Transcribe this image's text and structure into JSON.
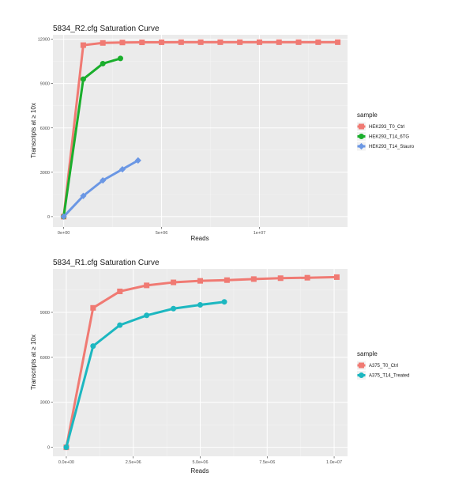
{
  "colors": {
    "panel": "#ebebeb",
    "grid_major": "#ffffff",
    "grid_minor": "#f5f5f5",
    "red": "#f07a73",
    "green": "#1aae2c",
    "blue": "#6b97e4",
    "teal": "#1cb7c0"
  },
  "chart_data": [
    {
      "type": "line",
      "title": "5834_R2.cfg Saturation Curve",
      "xlabel": "Reads",
      "ylabel": "Transcripts at ≥ 10x",
      "xlim": [
        -550000,
        14500000
      ],
      "ylim": [
        -700,
        12300
      ],
      "x_ticks": [
        0,
        5000000,
        10000000
      ],
      "x_tick_labels": [
        "0e+00",
        "5e+06",
        "1e+07"
      ],
      "y_ticks": [
        0,
        3000,
        6000,
        9000,
        12000
      ],
      "y_tick_labels": [
        "0",
        "3000",
        "6000",
        "9000",
        "12000"
      ],
      "grid": true,
      "legend_position": "right",
      "legend_title": "sample",
      "series": [
        {
          "name": "HEK293_T0_Ctrl",
          "color": "#f07a73",
          "marker": "square",
          "x": [
            0,
            1000000,
            2000000,
            3000000,
            4000000,
            5000000,
            6000000,
            7000000,
            8000000,
            9000000,
            10000000,
            11000000,
            12000000,
            13000000,
            14000000
          ],
          "y": [
            0,
            11600,
            11750,
            11780,
            11790,
            11795,
            11800,
            11800,
            11800,
            11800,
            11800,
            11800,
            11800,
            11800,
            11800
          ]
        },
        {
          "name": "HEK293_T14_6TG",
          "color": "#1aae2c",
          "marker": "circle",
          "x": [
            0,
            1000000,
            2000000,
            2900000
          ],
          "y": [
            0,
            9300,
            10350,
            10700
          ]
        },
        {
          "name": "HEK293_T14_Stauro",
          "color": "#6b97e4",
          "marker": "diamond",
          "x": [
            0,
            1000000,
            2000000,
            3000000,
            3800000
          ],
          "y": [
            0,
            1400,
            2450,
            3200,
            3800
          ]
        }
      ]
    },
    {
      "type": "line",
      "title": "5834_R1.cfg Saturation Curve",
      "xlabel": "Reads",
      "ylabel": "Transcripts at ≥ 10x",
      "xlim": [
        -500000,
        10500000
      ],
      "ylim": [
        -600,
        11900
      ],
      "x_ticks": [
        0,
        2500000,
        5000000,
        7500000,
        10000000
      ],
      "x_tick_labels": [
        "0.0e+00",
        "2.5e+06",
        "5.0e+06",
        "7.5e+06",
        "1.0e+07"
      ],
      "y_ticks": [
        0,
        3000,
        6000,
        9000
      ],
      "y_tick_labels": [
        "0",
        "3000",
        "6000",
        "9000"
      ],
      "grid": true,
      "legend_position": "right",
      "legend_title": "sample",
      "series": [
        {
          "name": "A375_T0_Ctrl",
          "color": "#f07a73",
          "marker": "square",
          "x": [
            0,
            1000000,
            2000000,
            3000000,
            4000000,
            5000000,
            6000000,
            7000000,
            8000000,
            9000000,
            10100000
          ],
          "y": [
            0,
            9300,
            10400,
            10800,
            11000,
            11100,
            11150,
            11220,
            11280,
            11310,
            11350
          ]
        },
        {
          "name": "A375_T14_Treated",
          "color": "#1cb7c0",
          "marker": "circle",
          "x": [
            0,
            1000000,
            2000000,
            3000000,
            4000000,
            5000000,
            5900000
          ],
          "y": [
            0,
            6750,
            8150,
            8800,
            9250,
            9500,
            9700
          ]
        }
      ]
    }
  ]
}
